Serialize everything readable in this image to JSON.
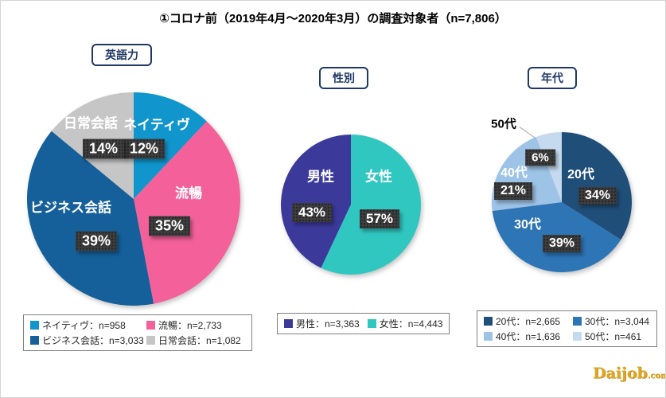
{
  "title": "①コロナ前（2019年4月～2020年3月）の調査対象者（n=7,806）",
  "logo": {
    "text": "Daijob",
    "suffix": ".com",
    "color": "#DFA524"
  },
  "chart_data": [
    {
      "type": "pie",
      "header": "英語力",
      "rotation": 0,
      "legend_position": "bottom",
      "slices": [
        {
          "label": "ネイティヴ",
          "value": 12,
          "pct": "12%",
          "n": "n=958",
          "legend": "ネイティヴ：n=958",
          "color": "#1095CD"
        },
        {
          "label": "流暢",
          "value": 35,
          "pct": "35%",
          "n": "n=2,733",
          "legend": "流暢：n=2,733",
          "color": "#F4619A"
        },
        {
          "label": "ビジネス会話",
          "value": 39,
          "pct": "39%",
          "n": "n=3,033",
          "legend": "ビジネス会話：n=3,033",
          "color": "#15609A"
        },
        {
          "label": "日常会話",
          "value": 14,
          "pct": "14%",
          "n": "n=1,082",
          "legend": "日常会話：n=1,082",
          "color": "#C6C6C6"
        }
      ]
    },
    {
      "type": "pie",
      "header": "性別",
      "rotation": 205.2,
      "legend_position": "bottom",
      "slices": [
        {
          "label": "男性",
          "value": 43,
          "pct": "43%",
          "n": "n=3,363",
          "legend": "男性：n=3,363",
          "color": "#3B3A9B"
        },
        {
          "label": "女性",
          "value": 57,
          "pct": "57%",
          "n": "n=4,443",
          "legend": "女性：n=4,443",
          "color": "#30C7C1"
        }
      ]
    },
    {
      "type": "pie",
      "header": "年代",
      "rotation": 0,
      "legend_position": "bottom",
      "slices": [
        {
          "label": "20代",
          "value": 34,
          "pct": "34%",
          "n": "n=2,665",
          "legend": "20代：n=2,665",
          "color": "#1F4E79"
        },
        {
          "label": "30代",
          "value": 39,
          "pct": "39%",
          "n": "n=3,044",
          "legend": "30代：n=3,044",
          "color": "#2E75B6"
        },
        {
          "label": "40代",
          "value": 21,
          "pct": "21%",
          "n": "n=1,636",
          "legend": "40代：n=1,636",
          "color": "#9DC3E6"
        },
        {
          "label": "50代",
          "value": 6,
          "pct": "6%",
          "n": "n=461",
          "legend": "50代：n=461",
          "color": "#C5DAEF"
        }
      ]
    }
  ]
}
